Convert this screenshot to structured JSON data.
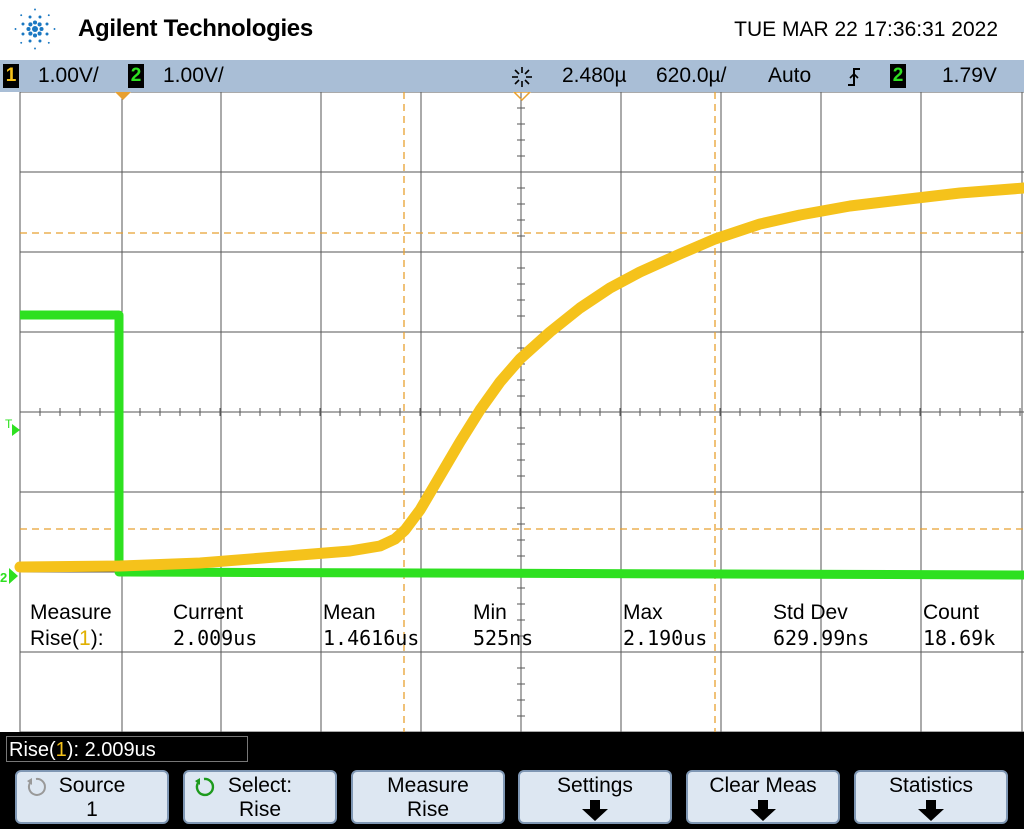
{
  "header": {
    "brand": "Agilent Technologies",
    "datetime": "TUE MAR 22 17:36:31 2022",
    "logo_icon": "agilent-spark-icon"
  },
  "status": {
    "ch1_num": "1",
    "ch1_scale": "1.00V/",
    "ch2_num": "2",
    "ch2_scale": "1.00V/",
    "run_icon": "acquisition-running-icon",
    "delay": "2.480µ",
    "timebase": "620.0µ/",
    "trigger_mode": "Auto",
    "trigger_slope_icon": "rising-edge-icon",
    "trigger_source": "2",
    "trigger_level": "1.79V"
  },
  "colors": {
    "ch1": "#f5c21b",
    "ch2": "#2ee020",
    "cursor": "#e8a030",
    "statusbar": "#a9bed6",
    "softkey": "#dde7f2"
  },
  "markers": {
    "trigger": "T",
    "ch2_ground": "2"
  },
  "measure": {
    "headers": [
      "Measure",
      "Current",
      "Mean",
      "Min",
      "Max",
      "Std Dev",
      "Count"
    ],
    "row_label_pre": "Rise(",
    "row_label_ch": "1",
    "row_label_post": "):",
    "values": [
      "2.009us",
      "1.4616us",
      "525ns",
      "2.190us",
      "629.99ns",
      "18.69k"
    ]
  },
  "message": {
    "pre": "Rise(",
    "ch": "1",
    "post": "): 2.009us"
  },
  "softkeys": [
    {
      "line1": "Source",
      "line2": "1",
      "icon": "rotary-knob-icon"
    },
    {
      "line1": "Select:",
      "line2": "Rise",
      "icon": "rotary-knob-active-icon"
    },
    {
      "line1": "Measure",
      "line2": "Rise"
    },
    {
      "line1": "Settings",
      "icon": "submenu-arrow-icon"
    },
    {
      "line1": "Clear Meas",
      "icon": "submenu-arrow-icon"
    },
    {
      "line1": "Statistics",
      "icon": "submenu-arrow-icon"
    }
  ]
}
